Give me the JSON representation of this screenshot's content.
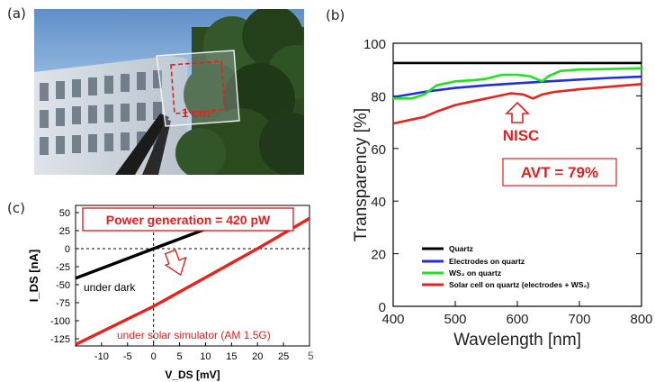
{
  "panels": {
    "a": {
      "label": "(a)",
      "area_label": "1 cm²"
    },
    "b": {
      "label": "(b)",
      "callout_nisc": "NISC",
      "callout_avt": "AVT = 79%"
    },
    "c": {
      "label": "(c)",
      "callout_power": "Power generation = 420 pW",
      "label_dark": "under dark",
      "label_solar": "under solar simulator (AM 1.5G)"
    }
  },
  "stray_glyph": "5",
  "colors": {
    "quartz": "#000000",
    "electrodes": "#1f2fe0",
    "ws2": "#22e022",
    "solar": "#e8221c",
    "callout_red": "#e02020"
  },
  "chart_data": [
    {
      "type": "line",
      "panel": "b",
      "title": "",
      "xlabel": "Wavelength [nm]",
      "ylabel": "Transparency [%]",
      "xlim": [
        400,
        800
      ],
      "ylim": [
        0,
        100
      ],
      "xticks": [
        400,
        500,
        600,
        700,
        800
      ],
      "yticks": [
        0,
        20,
        40,
        60,
        80,
        100
      ],
      "legend_position": "bottom-left",
      "series": [
        {
          "name": "Quartz",
          "color": "#000000",
          "x": [
            400,
            500,
            600,
            700,
            800
          ],
          "y": [
            92.5,
            92.5,
            92.5,
            92.5,
            92.5
          ]
        },
        {
          "name": "Electrodes on quartz",
          "color": "#1f2fe0",
          "x": [
            400,
            450,
            500,
            550,
            600,
            650,
            700,
            750,
            800
          ],
          "y": [
            79.5,
            81.5,
            83,
            84,
            84.8,
            85.5,
            86.2,
            86.8,
            87.3
          ]
        },
        {
          "name": "WS₂ on quartz",
          "color": "#22e022",
          "x": [
            400,
            430,
            450,
            470,
            500,
            530,
            550,
            575,
            600,
            620,
            630,
            640,
            650,
            670,
            700,
            750,
            800
          ],
          "y": [
            79,
            79,
            80.5,
            84,
            85.5,
            86,
            86.5,
            88,
            88,
            87.5,
            86.5,
            85.5,
            87.5,
            89.5,
            90,
            90.2,
            90.5
          ]
        },
        {
          "name": "Solar cell on quartz (electrodes + WS₂)",
          "color": "#e8221c",
          "x": [
            400,
            430,
            450,
            470,
            500,
            530,
            560,
            590,
            610,
            625,
            640,
            660,
            700,
            750,
            800
          ],
          "y": [
            69.5,
            71,
            72,
            74,
            76.5,
            78,
            79.5,
            81,
            80.5,
            79,
            80.5,
            81.5,
            82.5,
            83.5,
            84.5
          ]
        }
      ]
    },
    {
      "type": "line",
      "panel": "c",
      "title": "",
      "xlabel": "V_DS [mV]",
      "ylabel": "I_DS [nA]",
      "xlim": [
        -15,
        30
      ],
      "ylim": [
        -135,
        60
      ],
      "xticks": [
        -10,
        -5,
        0,
        5,
        10,
        15,
        20,
        25
      ],
      "yticks": [
        50,
        25,
        0,
        -25,
        -50,
        -75,
        -100,
        -125
      ],
      "series": [
        {
          "name": "under dark",
          "color": "#000000",
          "x": [
            -15,
            0,
            17
          ],
          "y": [
            -41,
            0,
            46
          ]
        },
        {
          "name": "under solar simulator (AM 1.5G)",
          "color": "#e8221c",
          "x": [
            -15,
            0,
            20,
            30
          ],
          "y": [
            -133,
            -80,
            0,
            42
          ]
        }
      ]
    }
  ]
}
